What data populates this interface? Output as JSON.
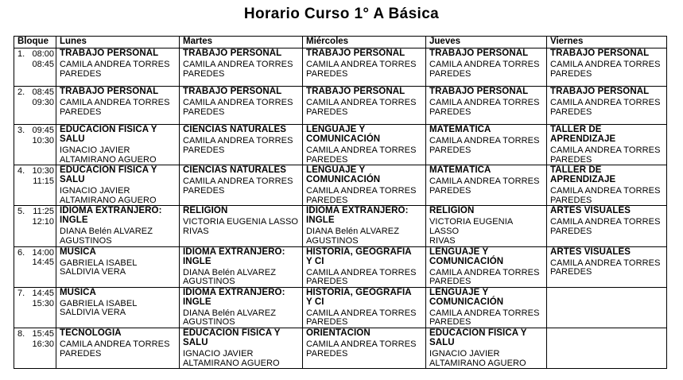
{
  "title": "Horario Curso 1° A Básica",
  "colors": {
    "background": "#ffffff",
    "text": "#000000",
    "border": "#000000"
  },
  "table": {
    "headers": [
      "Bloque",
      "Lunes",
      "Martes",
      "Miércoles",
      "Jueves",
      "Viernes"
    ],
    "rows": [
      {
        "block": "1.",
        "time_start": "08:00",
        "time_end": "08:45",
        "cells": [
          {
            "subject": "TRABAJO PERSONAL",
            "teacher": "CAMILA ANDREA TORRES\nPAREDES"
          },
          {
            "subject": "TRABAJO PERSONAL",
            "teacher": "CAMILA ANDREA TORRES\nPAREDES"
          },
          {
            "subject": "TRABAJO PERSONAL",
            "teacher": "CAMILA ANDREA TORRES\nPAREDES"
          },
          {
            "subject": "TRABAJO PERSONAL",
            "teacher": "CAMILA ANDREA TORRES\nPAREDES"
          },
          {
            "subject": "TRABAJO PERSONAL",
            "teacher": "CAMILA ANDREA TORRES\nPAREDES"
          }
        ]
      },
      {
        "block": "2.",
        "time_start": "08:45",
        "time_end": "09:30",
        "cells": [
          {
            "subject": "TRABAJO PERSONAL",
            "teacher": "CAMILA ANDREA TORRES\nPAREDES"
          },
          {
            "subject": "TRABAJO PERSONAL",
            "teacher": "CAMILA ANDREA TORRES\nPAREDES"
          },
          {
            "subject": "TRABAJO PERSONAL",
            "teacher": "CAMILA ANDREA TORRES\nPAREDES"
          },
          {
            "subject": "TRABAJO PERSONAL",
            "teacher": "CAMILA ANDREA TORRES\nPAREDES"
          },
          {
            "subject": "TRABAJO PERSONAL",
            "teacher": "CAMILA ANDREA TORRES\nPAREDES"
          }
        ]
      },
      {
        "block": "3.",
        "time_start": "09:45",
        "time_end": "10:30",
        "cells": [
          {
            "subject": "EDUCACIÓN FÍSICA Y\nSALU",
            "teacher": "IGNACIO JAVIER\nALTAMIRANO AGUERO"
          },
          {
            "subject": "CIENCIAS NATURALES",
            "teacher": "CAMILA ANDREA TORRES\nPAREDES"
          },
          {
            "subject": "LENGUAJE Y\nCOMUNICACIÓN",
            "teacher": "CAMILA ANDREA TORRES\nPAREDES"
          },
          {
            "subject": "MATEMÁTICA",
            "teacher": "CAMILA ANDREA TORRES\nPAREDES"
          },
          {
            "subject": "TALLER DE\nAPRENDIZAJE",
            "teacher": "CAMILA ANDREA TORRES\nPAREDES"
          }
        ]
      },
      {
        "block": "4.",
        "time_start": "10:30",
        "time_end": "11:15",
        "cells": [
          {
            "subject": "EDUCACIÓN FÍSICA Y\nSALU",
            "teacher": "IGNACIO JAVIER\nALTAMIRANO AGUERO"
          },
          {
            "subject": "CIENCIAS NATURALES",
            "teacher": "CAMILA ANDREA TORRES\nPAREDES"
          },
          {
            "subject": "LENGUAJE Y\nCOMUNICACIÓN",
            "teacher": "CAMILA ANDREA TORRES\nPAREDES"
          },
          {
            "subject": "MATEMÁTICA",
            "teacher": "CAMILA ANDREA TORRES\nPAREDES"
          },
          {
            "subject": "TALLER DE\nAPRENDIZAJE",
            "teacher": "CAMILA ANDREA TORRES\nPAREDES"
          }
        ]
      },
      {
        "block": "5.",
        "time_start": "11:25",
        "time_end": "12:10",
        "cells": [
          {
            "subject": "IDIOMA EXTRANJERO:\nINGLE",
            "teacher": "DIANA Belén ALVAREZ\nAGUSTINOS"
          },
          {
            "subject": "RELIGIÓN",
            "teacher": "VICTORIA EUGENIA LASSO\nRIVAS"
          },
          {
            "subject": "IDIOMA EXTRANJERO:\nINGLE",
            "teacher": "DIANA Belén ALVAREZ\nAGUSTINOS"
          },
          {
            "subject": "RELIGIÓN",
            "teacher": "VICTORIA EUGENIA LASSO\nRIVAS"
          },
          {
            "subject": "ARTES VISUALES",
            "teacher": "CAMILA ANDREA TORRES\nPAREDES"
          }
        ]
      },
      {
        "block": "6.",
        "time_start": "14:00",
        "time_end": "14:45",
        "cells": [
          {
            "subject": "MÚSICA",
            "teacher": "GABRIELA ISABEL\nSALDIVIA VERA"
          },
          {
            "subject": "IDIOMA EXTRANJERO:\nINGLE",
            "teacher": "DIANA Belén ALVAREZ\nAGUSTINOS"
          },
          {
            "subject": "HISTORIA, GEOGRAFÍA\nY CI",
            "teacher": "CAMILA ANDREA TORRES\nPAREDES"
          },
          {
            "subject": "LENGUAJE Y\nCOMUNICACIÓN",
            "teacher": "CAMILA ANDREA TORRES\nPAREDES"
          },
          {
            "subject": "ARTES VISUALES",
            "teacher": "CAMILA ANDREA TORRES\nPAREDES"
          }
        ]
      },
      {
        "block": "7.",
        "time_start": "14:45",
        "time_end": "15:30",
        "cells": [
          {
            "subject": "MÚSICA",
            "teacher": "GABRIELA ISABEL\nSALDIVIA VERA"
          },
          {
            "subject": "IDIOMA EXTRANJERO:\nINGLE",
            "teacher": "DIANA Belén ALVAREZ\nAGUSTINOS"
          },
          {
            "subject": "HISTORIA, GEOGRAFÍA\nY CI",
            "teacher": "CAMILA ANDREA TORRES\nPAREDES"
          },
          {
            "subject": "LENGUAJE Y\nCOMUNICACIÓN",
            "teacher": "CAMILA ANDREA TORRES\nPAREDES"
          },
          {
            "subject": "",
            "teacher": ""
          }
        ]
      },
      {
        "block": "8.",
        "time_start": "15:45",
        "time_end": "16:30",
        "cells": [
          {
            "subject": "TECNOLOGÍA",
            "teacher": "CAMILA ANDREA TORRES\nPAREDES"
          },
          {
            "subject": "EDUCACIÓN FÍSICA Y\nSALU",
            "teacher": "IGNACIO JAVIER\nALTAMIRANO AGUERO"
          },
          {
            "subject": "ORIENTACIÓN",
            "teacher": "CAMILA ANDREA TORRES\nPAREDES"
          },
          {
            "subject": "EDUCACIÓN FÍSICA Y\nSALU",
            "teacher": "IGNACIO JAVIER\nALTAMIRANO AGUERO"
          },
          {
            "subject": "",
            "teacher": ""
          }
        ]
      }
    ]
  }
}
